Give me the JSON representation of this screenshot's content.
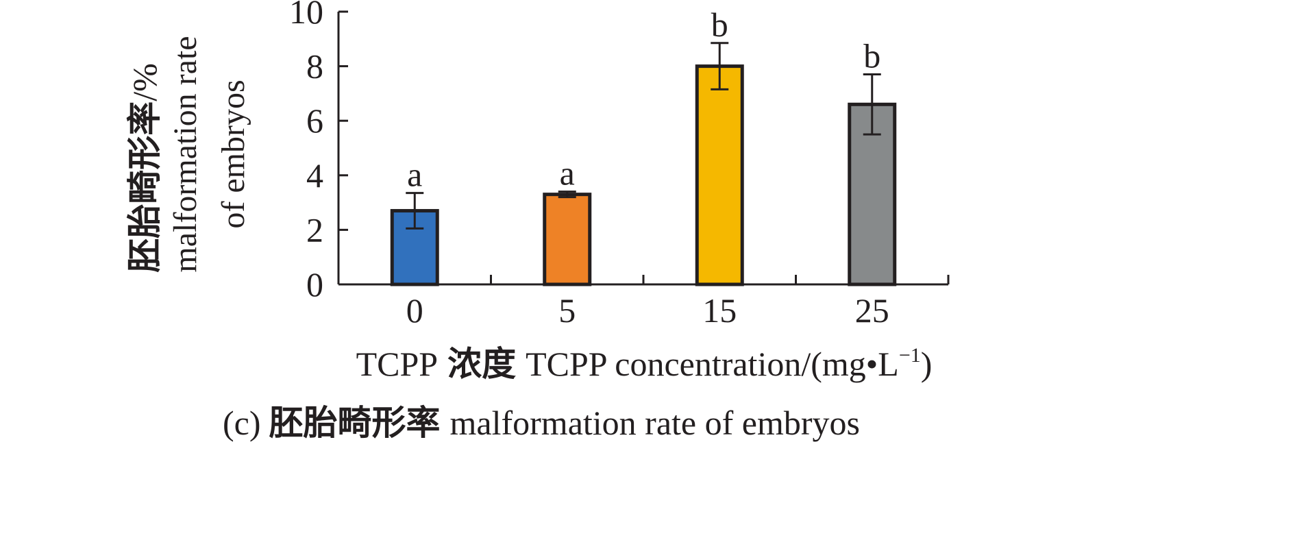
{
  "chart_data": {
    "type": "bar",
    "categories": [
      "0",
      "5",
      "15",
      "25"
    ],
    "series": [
      {
        "values": [
          2.7,
          3.3,
          8.0,
          6.6
        ],
        "errors": [
          0.65,
          0.1,
          0.85,
          1.1
        ],
        "significance_letters": [
          "a",
          "a",
          "b",
          "b"
        ],
        "colors": [
          "#3171bd",
          "#ee8226",
          "#f5b800",
          "#878a8b"
        ]
      }
    ],
    "ylim": [
      0,
      10
    ],
    "yticks": [
      "0",
      "2",
      "4",
      "6",
      "8",
      "10"
    ],
    "ylabel": {
      "cn": "胚胎畸形率",
      "unit": "/%",
      "en_line1": "malformation rate",
      "en_line2": "of embryos"
    },
    "xlabel": {
      "prefix": "TCPP",
      "cn": "浓度",
      "en": "TCPP concentration/(mg",
      "dot": "•",
      "unit": "L",
      "sup": "−1",
      "close": ")"
    },
    "caption": {
      "label": "(c)",
      "cn": "胚胎畸形率",
      "en": "malformation rate of embryos"
    },
    "grid": false,
    "legend": "none",
    "bar_edge_color": "#231f20"
  }
}
